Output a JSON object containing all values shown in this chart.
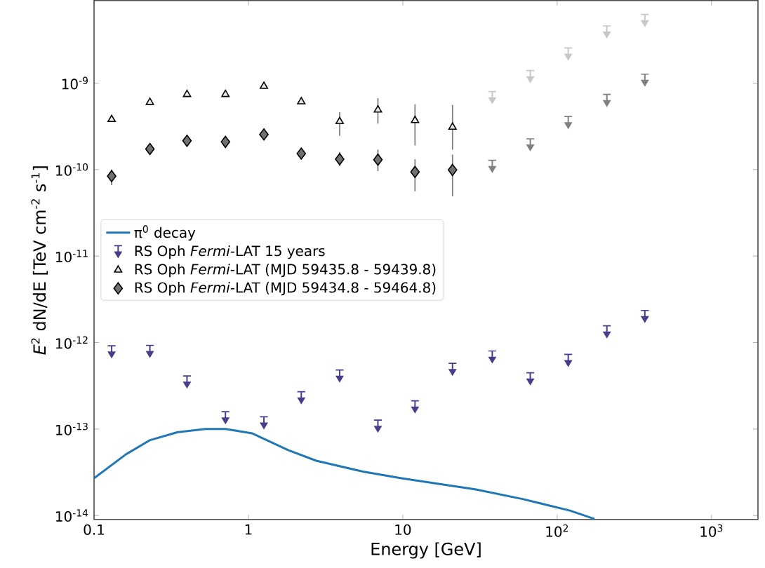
{
  "chart_data": {
    "type": "scatter",
    "xlabel": "Energy [GeV]",
    "ylabel": "*E*$^{2}$ dN/dE [TeV cm$^{-2}$ s$^{-1}$]",
    "log": "xy",
    "legend": "left",
    "xlim": [
      0.1,
      2000
    ],
    "ylim": [
      9e-15,
      9e-09
    ],
    "xticks": [
      0.1,
      1,
      10,
      {
        "value": 100,
        "label": "10$^{2}$"
      },
      {
        "value": 1000,
        "label": "10$^{3}$"
      }
    ],
    "yticks": [
      {
        "value": 1e-14,
        "label": "10$^{-14}$"
      },
      {
        "value": 1e-13,
        "label": "10$^{-13}$"
      },
      {
        "value": 1e-12,
        "label": "10$^{-12}$"
      },
      {
        "value": 1e-11,
        "label": "10$^{-11}$"
      },
      {
        "value": 1e-10,
        "label": "10$^{-10}$"
      },
      {
        "value": 1e-09,
        "label": "10$^{-9}$"
      }
    ],
    "series": [
      {
        "name": "π$^{0}$ decay",
        "type": "line",
        "color": "#1f77b4",
        "x": [
          0.1,
          0.161,
          0.229,
          0.348,
          0.527,
          0.711,
          1.06,
          1.81,
          2.75,
          5.6,
          9.8,
          29.8,
          59.7,
          121,
          175
        ],
        "values": [
          2.7e-14,
          5.1e-14,
          7.4e-14,
          9.2e-14,
          1e-13,
          1e-13,
          8.9e-14,
          5.7e-14,
          4.3e-14,
          3.2e-14,
          2.7e-14,
          2e-14,
          1.55e-14,
          1.14e-14,
          9.1e-15
        ]
      },
      {
        "name": "RS Oph *Fermi*-LAT 15 years",
        "color": "#483d8b",
        "x": [
          0.13,
          0.23,
          0.4,
          0.71,
          1.26,
          2.2,
          3.9,
          6.9,
          12,
          21,
          38,
          67,
          118,
          210,
          370
        ],
        "values": [
          7.8e-13,
          7.9e-13,
          3.5e-13,
          1.35e-13,
          1.18e-13,
          2.3e-13,
          4.1e-13,
          1.08e-13,
          1.8e-13,
          4.9e-13,
          6.8e-13,
          3.8e-13,
          6.2e-13,
          1.33e-12,
          2e-12
        ]
      },
      {
        "name": "RS Oph *Fermi*-LAT (MJD 59435.8 - 59439.8)",
        "marker": "triangle",
        "color": "#e8e8e8",
        "x": [
          0.13,
          0.23,
          0.4,
          0.71,
          1.26,
          2.2,
          3.9,
          6.9,
          12,
          21
        ],
        "values": [
          3.8e-10,
          6e-10,
          7.4e-10,
          7.4e-10,
          9.2e-10,
          6.1e-10,
          3.6e-10,
          4.9e-10,
          3.7e-10,
          3.1e-10
        ],
        "errors": [
          null,
          null,
          null,
          null,
          null,
          null,
          [
            2.45e-10,
            4.6e-10
          ],
          [
            3.4e-10,
            6.7e-10
          ],
          [
            1.9e-10,
            5.7e-10
          ],
          [
            1.7e-10,
            5.6e-10
          ]
        ]
      },
      {
        "name": "RS Oph *Fermi*-LAT (MJD 59434.8 - 59464.8)",
        "marker": "diamond",
        "color": "#707070",
        "x": [
          0.13,
          0.23,
          0.4,
          0.71,
          1.26,
          2.2,
          3.9,
          6.9,
          12,
          21
        ],
        "values": [
          8.4e-11,
          1.73e-10,
          2.15e-10,
          2.09e-10,
          2.55e-10,
          1.53e-10,
          1.32e-10,
          1.3e-10,
          9.4e-11,
          9.9e-11
        ],
        "errors": [
          [
            6.6e-11,
            1e-10
          ],
          null,
          null,
          null,
          null,
          null,
          [
            1.1e-10,
            1.6e-10
          ],
          [
            9.6e-11,
            1.7e-10
          ],
          [
            5.6e-11,
            1.32e-10
          ],
          [
            4.9e-11,
            1.49e-10
          ]
        ]
      },
      {
        "color": "#c8c8c8",
        "x": [
          38,
          67,
          118,
          210,
          370
        ],
        "values": [
          6.8e-10,
          1.19e-09,
          2.17e-09,
          3.9e-09,
          5.3e-09
        ]
      },
      {
        "color": "#808080",
        "x": [
          38,
          67,
          118,
          210,
          370
        ],
        "values": [
          1.09e-10,
          1.93e-10,
          3.5e-10,
          6.3e-10,
          1.08e-09
        ]
      }
    ]
  }
}
